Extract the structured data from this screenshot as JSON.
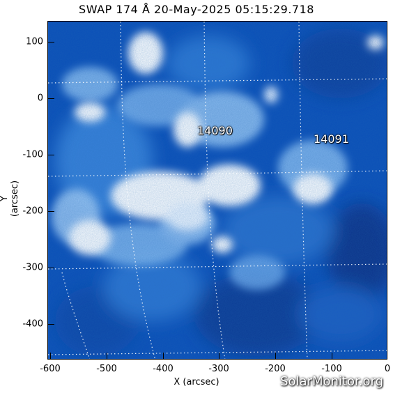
{
  "title": "SWAP 174 Å 20-May-2025 05:15:29.718",
  "axes": {
    "xlabel": "X (arcsec)",
    "ylabel": "Y (arcsec)",
    "xticks": [
      "-600",
      "-500",
      "-400",
      "-300",
      "-200",
      "-100",
      "0"
    ],
    "yticks": [
      "100",
      "0",
      "-100",
      "-200",
      "-300",
      "-400"
    ]
  },
  "regions": [
    {
      "label": "14090"
    },
    {
      "label": "14091"
    }
  ],
  "watermark": "SolarMonitor.org",
  "colors": {
    "background_blue": "#0a4fb8",
    "deep_blue": "#06307a",
    "bright": "#ffffff"
  }
}
